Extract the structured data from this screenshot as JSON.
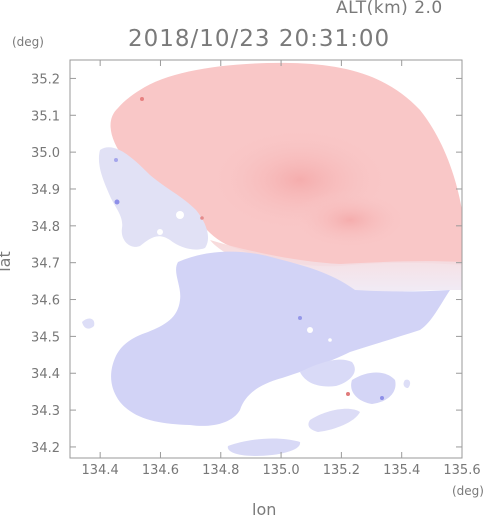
{
  "header": {
    "altitude_label": "ALT(km) 2.0",
    "timestamp": "2018/10/23 20:31:00"
  },
  "axes": {
    "y_unit": "(deg)",
    "x_unit": "(deg)",
    "x_label": "lon",
    "y_label": "lat"
  },
  "chart_data": {
    "type": "heatmap",
    "xlabel": "lon",
    "ylabel": "lat",
    "xlim": [
      134.3,
      135.6
    ],
    "ylim": [
      34.17,
      35.25
    ],
    "x_ticks": [
      134.4,
      134.6,
      134.8,
      135.0,
      135.2,
      135.4,
      135.6
    ],
    "x_tick_labels": [
      "134.4",
      "134.6",
      "134.8",
      "135.0",
      "135.2",
      "135.4",
      "135.6"
    ],
    "y_ticks": [
      34.2,
      34.3,
      34.4,
      34.5,
      34.6,
      34.7,
      34.8,
      34.9,
      35.0,
      35.1,
      35.2
    ],
    "y_tick_labels": [
      "34.2",
      "34.3",
      "34.4",
      "34.5",
      "34.6",
      "34.7",
      "34.8",
      "34.9",
      "35.0",
      "35.1",
      "35.2"
    ],
    "grid": false,
    "colors": {
      "positive": "#f9c6c6",
      "positive_strong": "#f6b3b3",
      "near_zero": "#f2eef6",
      "negative": "#d2d3f6",
      "frame": "#9a9a9a"
    }
  }
}
